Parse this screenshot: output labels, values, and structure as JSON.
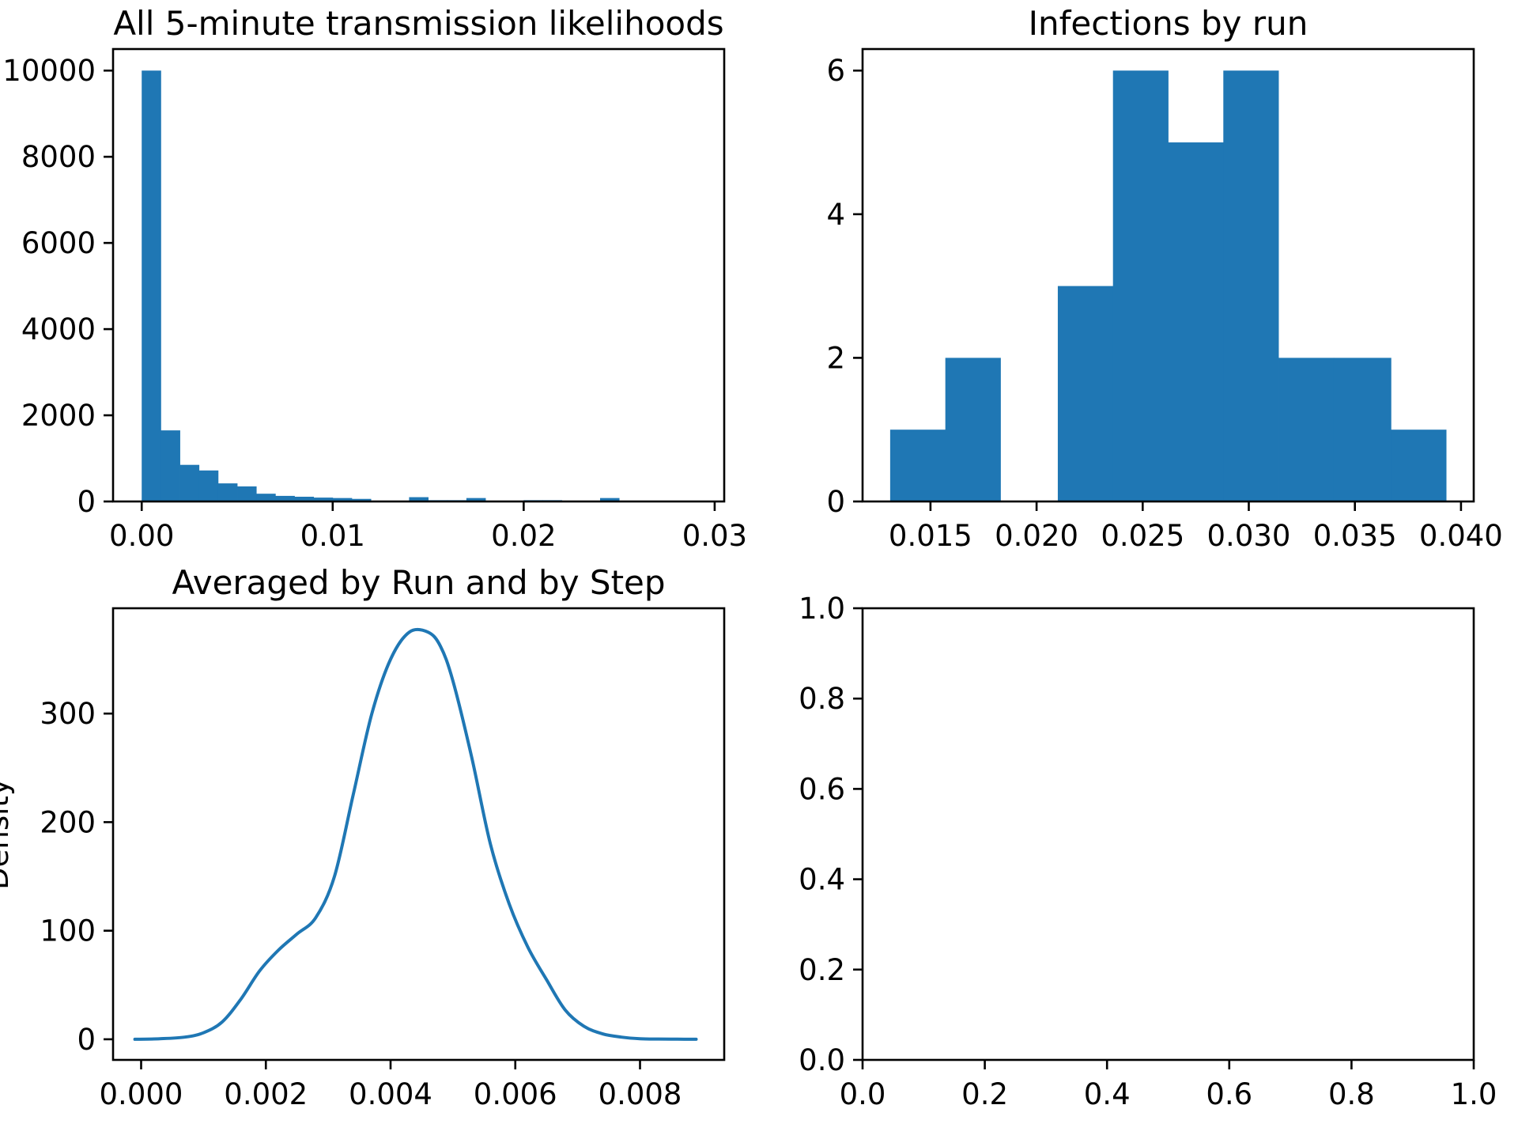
{
  "colors": {
    "series": "#1f77b4",
    "frame": "#000000",
    "background": "#ffffff"
  },
  "chart_data": [
    {
      "type": "bar",
      "title": "All 5-minute transmission likelihoods",
      "xlabel": "",
      "ylabel": "",
      "xlim": [
        -0.0015,
        0.0305
      ],
      "ylim": [
        0,
        10500
      ],
      "grid": false,
      "xticks": [
        0.0,
        0.01,
        0.02,
        0.03
      ],
      "xtick_labels": [
        "0.00",
        "0.01",
        "0.02",
        "0.03"
      ],
      "yticks": [
        0,
        2000,
        4000,
        6000,
        8000,
        10000
      ],
      "ytick_labels": [
        "0",
        "2000",
        "4000",
        "6000",
        "8000",
        "10000"
      ],
      "bin_edges": [
        0.0,
        0.001,
        0.002,
        0.003,
        0.004,
        0.005,
        0.006,
        0.007,
        0.008,
        0.009,
        0.01,
        0.011,
        0.012,
        0.013,
        0.014,
        0.015,
        0.016,
        0.017,
        0.018,
        0.019,
        0.02,
        0.021,
        0.022,
        0.023,
        0.024,
        0.025
      ],
      "values": [
        10000,
        1650,
        850,
        720,
        420,
        350,
        180,
        130,
        110,
        90,
        80,
        60,
        0,
        0,
        100,
        30,
        30,
        80,
        0,
        0,
        30,
        30,
        0,
        0,
        80
      ]
    },
    {
      "type": "bar",
      "title": "Infections by run",
      "xlabel": "",
      "ylabel": "",
      "xlim": [
        0.0118,
        0.0406
      ],
      "ylim": [
        0,
        6.3
      ],
      "grid": false,
      "xticks": [
        0.015,
        0.02,
        0.025,
        0.03,
        0.035,
        0.04
      ],
      "xtick_labels": [
        "0.015",
        "0.020",
        "0.025",
        "0.030",
        "0.035",
        "0.040"
      ],
      "yticks": [
        0,
        2,
        4,
        6
      ],
      "ytick_labels": [
        "0",
        "2",
        "4",
        "6"
      ],
      "bin_edges": [
        0.0131,
        0.0157,
        0.0183,
        0.021,
        0.0236,
        0.0262,
        0.0288,
        0.0314,
        0.034,
        0.0367,
        0.0393
      ],
      "values": [
        1,
        2,
        0,
        3,
        6,
        5,
        6,
        2,
        2,
        1
      ]
    },
    {
      "type": "line",
      "title": "Averaged by Run and by Step",
      "xlabel": "",
      "ylabel": "Density",
      "xlim": [
        -0.00045,
        0.00935
      ],
      "ylim": [
        -19,
        397
      ],
      "grid": false,
      "xticks": [
        0.0,
        0.002,
        0.004,
        0.006,
        0.008
      ],
      "xtick_labels": [
        "0.000",
        "0.002",
        "0.004",
        "0.006",
        "0.008"
      ],
      "yticks": [
        0,
        100,
        200,
        300
      ],
      "ytick_labels": [
        "0",
        "100",
        "200",
        "300"
      ],
      "series": [
        {
          "x": [
            -0.0001,
            0.0003,
            0.0007,
            0.001,
            0.0013,
            0.0016,
            0.0019,
            0.0022,
            0.0025,
            0.0028,
            0.0031,
            0.0034,
            0.0037,
            0.004,
            0.0043,
            0.0046,
            0.0048,
            0.005,
            0.0053,
            0.0056,
            0.0059,
            0.0062,
            0.0065,
            0.0068,
            0.0071,
            0.0074,
            0.0077,
            0.008,
            0.0083,
            0.0086,
            0.0089
          ],
          "y": [
            0,
            0.5,
            2,
            6,
            16,
            37,
            63,
            82,
            97,
            112,
            150,
            225,
            300,
            350,
            375,
            375,
            362,
            330,
            260,
            180,
            125,
            85,
            55,
            27,
            12,
            5,
            2,
            0.5,
            0.2,
            0.1,
            0
          ]
        }
      ]
    },
    {
      "type": "line",
      "title": "",
      "xlabel": "",
      "ylabel": "",
      "xlim": [
        0,
        1
      ],
      "ylim": [
        0,
        1
      ],
      "grid": false,
      "xticks": [
        0.0,
        0.2,
        0.4,
        0.6,
        0.8,
        1.0
      ],
      "xtick_labels": [
        "0.0",
        "0.2",
        "0.4",
        "0.6",
        "0.8",
        "1.0"
      ],
      "yticks": [
        0.0,
        0.2,
        0.4,
        0.6,
        0.8,
        1.0
      ],
      "ytick_labels": [
        "0.0",
        "0.2",
        "0.4",
        "0.6",
        "0.8",
        "1.0"
      ],
      "series": []
    }
  ]
}
